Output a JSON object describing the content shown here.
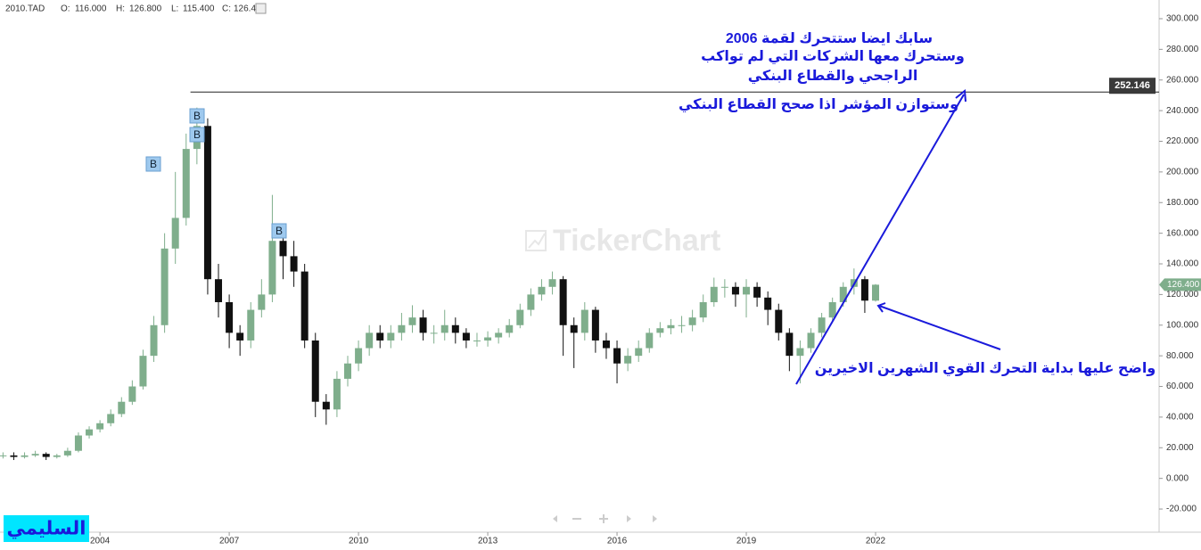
{
  "header": {
    "symbol": "2010.TAD",
    "ohlc": [
      {
        "label": "O:",
        "value": "116.000"
      },
      {
        "label": "H:",
        "value": "126.800"
      },
      {
        "label": "L:",
        "value": "115.400"
      },
      {
        "label": "C:",
        "value": "126.400"
      }
    ]
  },
  "watermark": "TickerChart",
  "logo": "السليمي",
  "annotations": [
    "سابك ايضا ستتحرك لقمة 2006",
    "وستحرك معها الشركات التي لم تواكب",
    "الراجحي والقطاع البنكي",
    "وستوازن المؤشر اذا صحح القطاع البنكي",
    "واضح عليها بداية التحرك القوي الشهرين الاخيرين"
  ],
  "buy_markers": [
    "B",
    "B",
    "B",
    "B"
  ],
  "chart_data": {
    "type": "candlestick",
    "x": [
      2001.75,
      2002,
      2002.25,
      2002.5,
      2002.75,
      2003,
      2003.25,
      2003.5,
      2003.75,
      2004,
      2004.25,
      2004.5,
      2004.75,
      2005,
      2005.25,
      2005.5,
      2005.75,
      2006,
      2006.25,
      2006.5,
      2006.75,
      2007,
      2007.25,
      2007.5,
      2007.75,
      2008,
      2008.25,
      2008.5,
      2008.75,
      2009,
      2009.25,
      2009.5,
      2009.75,
      2010,
      2010.25,
      2010.5,
      2010.75,
      2011,
      2011.25,
      2011.5,
      2011.75,
      2012,
      2012.25,
      2012.5,
      2012.75,
      2013,
      2013.25,
      2013.5,
      2013.75,
      2014,
      2014.25,
      2014.5,
      2014.75,
      2015,
      2015.25,
      2015.5,
      2015.75,
      2016,
      2016.25,
      2016.5,
      2016.75,
      2017,
      2017.25,
      2017.5,
      2017.75,
      2018,
      2018.25,
      2018.5,
      2018.75,
      2019,
      2019.25,
      2019.5,
      2019.75,
      2020,
      2020.25,
      2020.5,
      2020.75,
      2021,
      2021.25,
      2021.5,
      2021.75,
      2022
    ],
    "open": [
      15,
      15,
      14,
      15,
      16,
      14,
      15,
      18,
      28,
      32,
      36,
      42,
      50,
      60,
      80,
      100,
      150,
      170,
      215,
      230,
      130,
      115,
      95,
      90,
      110,
      120,
      155,
      145,
      135,
      90,
      50,
      45,
      65,
      75,
      85,
      95,
      90,
      95,
      100,
      105,
      95,
      95,
      100,
      95,
      90,
      90,
      92,
      95,
      100,
      110,
      120,
      125,
      130,
      100,
      95,
      110,
      90,
      85,
      75,
      80,
      85,
      95,
      98,
      100,
      100,
      105,
      115,
      125,
      125,
      120,
      125,
      118,
      110,
      95,
      80,
      85,
      95,
      105,
      115,
      125,
      130,
      116
    ],
    "high": [
      17,
      17,
      17,
      18,
      17,
      16,
      20,
      30,
      34,
      38,
      45,
      53,
      64,
      84,
      106,
      160,
      200,
      225,
      242,
      235,
      140,
      120,
      100,
      115,
      130,
      185,
      165,
      155,
      140,
      95,
      55,
      70,
      80,
      90,
      100,
      100,
      100,
      108,
      113,
      110,
      100,
      110,
      105,
      98,
      95,
      96,
      98,
      104,
      114,
      124,
      130,
      135,
      132,
      105,
      115,
      112,
      95,
      90,
      85,
      90,
      98,
      102,
      104,
      106,
      110,
      120,
      131,
      130,
      128,
      130,
      128,
      122,
      114,
      98,
      90,
      98,
      108,
      118,
      128,
      137,
      132,
      126.8
    ],
    "low": [
      13,
      12,
      13,
      14,
      12,
      13,
      14,
      17,
      26,
      30,
      34,
      40,
      48,
      58,
      76,
      95,
      140,
      165,
      205,
      120,
      105,
      85,
      80,
      85,
      105,
      115,
      130,
      125,
      85,
      40,
      35,
      40,
      60,
      70,
      80,
      85,
      85,
      90,
      95,
      90,
      88,
      90,
      88,
      85,
      86,
      86,
      88,
      92,
      98,
      106,
      116,
      120,
      80,
      72,
      90,
      82,
      78,
      62,
      70,
      76,
      82,
      92,
      94,
      95,
      96,
      102,
      112,
      118,
      112,
      105,
      112,
      100,
      90,
      70,
      62,
      82,
      92,
      102,
      112,
      120,
      108,
      115.4
    ],
    "close": [
      15,
      14,
      15,
      16,
      14,
      15,
      18,
      28,
      32,
      36,
      42,
      50,
      60,
      80,
      100,
      150,
      170,
      215,
      230,
      130,
      115,
      95,
      90,
      110,
      120,
      155,
      145,
      135,
      90,
      50,
      45,
      65,
      75,
      85,
      95,
      90,
      95,
      100,
      105,
      95,
      95,
      100,
      95,
      90,
      90,
      92,
      95,
      100,
      110,
      120,
      125,
      130,
      100,
      95,
      110,
      90,
      85,
      75,
      80,
      85,
      95,
      98,
      100,
      100,
      105,
      115,
      125,
      125,
      120,
      125,
      118,
      110,
      95,
      80,
      85,
      95,
      105,
      115,
      125,
      130,
      116,
      126.4
    ],
    "up_color": "#7fae8c",
    "down_color": "#111111",
    "xlim": [
      2001.68,
      2028.58
    ],
    "xticks": [
      2004,
      2007,
      2010,
      2013,
      2016,
      2019,
      2022
    ],
    "ylim": [
      -35.1,
      312.2
    ],
    "yticks": [
      {
        "value": 300,
        "label": "300.000"
      },
      {
        "value": 280,
        "label": "280.000"
      },
      {
        "value": 260,
        "label": "260.000"
      },
      {
        "value": 240,
        "label": "240.000"
      },
      {
        "value": 220,
        "label": "220.000"
      },
      {
        "value": 200,
        "label": "200.000"
      },
      {
        "value": 180,
        "label": "180.000"
      },
      {
        "value": 160,
        "label": "160.000"
      },
      {
        "value": 140,
        "label": "140.000"
      },
      {
        "value": 120,
        "label": "120.000"
      },
      {
        "value": 100,
        "label": "100.000"
      },
      {
        "value": 80,
        "label": "80.000"
      },
      {
        "value": 60,
        "label": "60.000"
      },
      {
        "value": 40,
        "label": "40.000"
      },
      {
        "value": 20,
        "label": "20.000"
      },
      {
        "value": 0,
        "label": "0.000"
      },
      {
        "value": -20,
        "label": "-20.000"
      }
    ],
    "reference_line": {
      "value": 252.146,
      "label": "252.146",
      "start": 2006.1
    },
    "last_price": {
      "value": 126.4,
      "label": "126.400"
    }
  }
}
